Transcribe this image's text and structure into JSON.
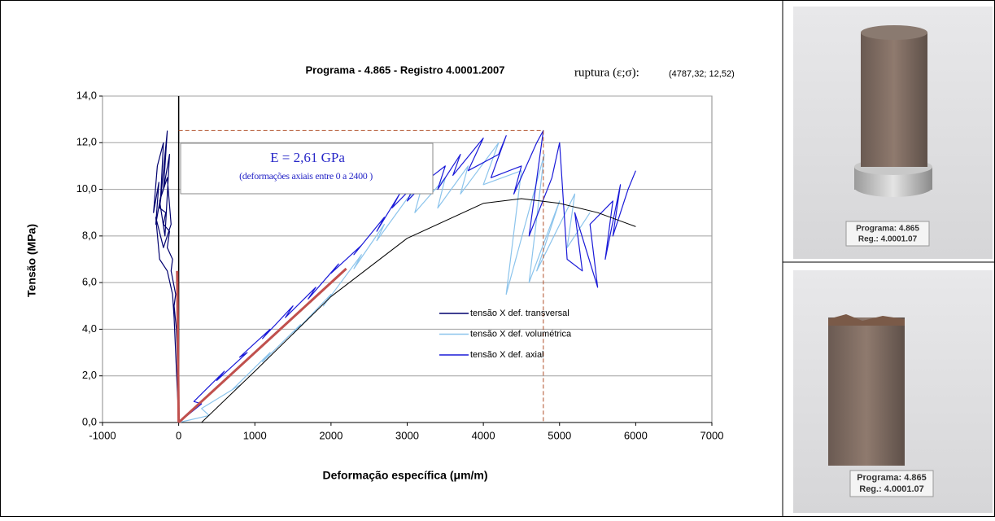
{
  "chart_data": {
    "type": "line",
    "title": "Programa - 4.865 - Registro  4.0001.2007",
    "rupture": {
      "label": "ruptura (ε;σ):",
      "value_text": "(4787,32; 12,52)",
      "x": 4787.32,
      "y": 12.52,
      "color": "#b0502a"
    },
    "modulus": {
      "text": "E = 2,61 GPa",
      "note": "(deformações axiais entre 0 a 2400 )"
    },
    "xlabel": "Deformação específica (μm/m)",
    "ylabel": "Tensão (MPa)",
    "xlim": [
      -1000,
      7000
    ],
    "xticks": [
      -1000,
      0,
      1000,
      2000,
      3000,
      4000,
      5000,
      6000,
      7000
    ],
    "ylim": [
      0,
      14
    ],
    "yticks": [
      {
        "value": 0,
        "label": "0,0"
      },
      {
        "value": 2,
        "label": "2,0"
      },
      {
        "value": 4,
        "label": "4,0"
      },
      {
        "value": 6,
        "label": "6,0"
      },
      {
        "value": 8,
        "label": "8,0"
      },
      {
        "value": 10,
        "label": "10,0"
      },
      {
        "value": 12,
        "label": "12,0"
      },
      {
        "value": 14,
        "label": "14,0"
      }
    ],
    "grid": true,
    "series": [
      {
        "name": "tensão X def. transversal",
        "color": "#00006e",
        "x": [
          0,
          -10,
          -20,
          -30,
          -60,
          -40,
          -100,
          -80,
          -150,
          -120,
          -200,
          -170,
          -250,
          -220,
          -300,
          -260,
          -330,
          -280,
          -200,
          -240,
          -150,
          -200,
          -120,
          -180,
          -250,
          -150,
          -100,
          -200,
          -300,
          -250,
          -150,
          -80,
          -60,
          -40,
          -20,
          0
        ],
        "values": [
          0,
          1.5,
          3,
          4,
          5,
          5.5,
          6.5,
          7,
          7.5,
          8.2,
          8.5,
          9,
          9.2,
          10,
          8.5,
          10.3,
          9,
          11,
          12,
          9.5,
          12.5,
          10,
          11.5,
          8,
          9.5,
          10.5,
          8.5,
          7.5,
          8.8,
          7,
          6.5,
          5.5,
          4.5,
          3,
          1.5,
          0.2
        ]
      },
      {
        "name": "tensão X def. volumétrica",
        "color": "#8cc4ec",
        "x": [
          0,
          400,
          300,
          800,
          700,
          1200,
          1100,
          1600,
          1500,
          2000,
          1900,
          2400,
          2300,
          2700,
          2600,
          3000,
          3200,
          3100,
          3500,
          3400,
          3800,
          3700,
          4200,
          4000,
          4500,
          4300,
          4800,
          4600,
          5000,
          4700,
          5200,
          5100,
          5400
        ],
        "values": [
          0,
          0.3,
          0.6,
          1.6,
          1.4,
          3.0,
          2.6,
          4.2,
          3.8,
          5.5,
          5.0,
          7.2,
          6.6,
          8.5,
          7.8,
          9.6,
          10.2,
          9.0,
          10.5,
          9.2,
          11.0,
          9.8,
          12.0,
          10.2,
          10.8,
          5.5,
          11.5,
          6.0,
          9.5,
          6.5,
          9.8,
          7.5,
          9.0
        ]
      },
      {
        "name": "tensão X def. axial",
        "color": "#1a1ad8",
        "x": [
          0,
          300,
          200,
          600,
          500,
          900,
          800,
          1200,
          1100,
          1500,
          1400,
          1800,
          1700,
          2100,
          2000,
          2400,
          2300,
          2700,
          2600,
          2900,
          2800,
          3100,
          3000,
          3300,
          3500,
          3400,
          3700,
          3600,
          3900,
          4000,
          3800,
          4200,
          4300,
          4100,
          4500,
          4400,
          4700,
          4787,
          4600,
          4900,
          5000,
          5100,
          5300,
          5200,
          5500,
          5400,
          5700,
          5600,
          5800,
          5700,
          5900,
          6000
        ],
        "values": [
          0,
          0.8,
          0.9,
          2.2,
          1.8,
          3.0,
          2.8,
          4.0,
          3.6,
          5.0,
          4.5,
          5.8,
          5.3,
          6.8,
          6.4,
          7.6,
          7.2,
          8.8,
          8.2,
          9.8,
          9.2,
          10.2,
          9.5,
          10.5,
          11.0,
          10.0,
          11.5,
          10.6,
          11.8,
          12.2,
          10.8,
          11.5,
          12.3,
          10.5,
          11.0,
          9.8,
          12.0,
          12.52,
          8.0,
          10.5,
          12.0,
          7.0,
          6.5,
          9.0,
          5.8,
          8.5,
          9.5,
          7.0,
          10.2,
          8.0,
          10.0,
          10.8
        ]
      }
    ],
    "trend": {
      "color": "#000000",
      "x": [
        300,
        1000,
        2000,
        3000,
        4000,
        4500,
        5000,
        5500,
        6000
      ],
      "values": [
        0,
        2.2,
        5.4,
        7.9,
        9.4,
        9.6,
        9.4,
        9.0,
        8.4
      ]
    },
    "fits": [
      {
        "color": "#c0504d",
        "x": [
          0,
          2200
        ],
        "values": [
          0,
          6.6
        ]
      },
      {
        "color": "#c0504d",
        "x": [
          0,
          -20
        ],
        "values": [
          0,
          6.5
        ]
      }
    ]
  },
  "photos": [
    {
      "label1": "Programa: 4.865",
      "label2": "Reg.: 4.0001.07"
    },
    {
      "label1": "Programa: 4.865",
      "label2": "Reg.: 4.0001.07"
    }
  ]
}
